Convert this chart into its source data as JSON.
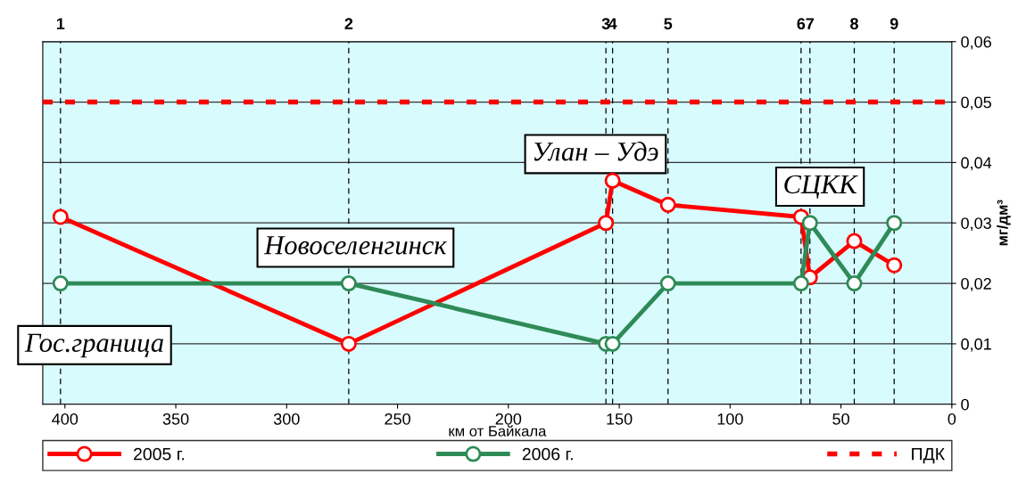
{
  "chart_data": {
    "type": "line",
    "xlabel": "км от Байкала",
    "ylabel": "мг/дм³",
    "x": [
      402,
      272,
      156,
      153,
      128,
      68,
      64,
      44,
      26
    ],
    "series": [
      {
        "name": "2005 г.",
        "color": "#ff0000",
        "values": [
          0.031,
          0.01,
          0.03,
          0.037,
          0.033,
          0.031,
          0.021,
          0.027,
          0.023
        ]
      },
      {
        "name": "2006 г.",
        "color": "#2e8b57",
        "values": [
          0.02,
          0.02,
          0.01,
          0.01,
          0.02,
          0.02,
          0.03,
          0.02,
          0.03
        ]
      }
    ],
    "xlim": [
      410,
      0
    ],
    "xticks": [
      400,
      350,
      300,
      250,
      200,
      150,
      100,
      50,
      0
    ],
    "ylim": [
      0,
      0.06
    ],
    "yticks": [
      {
        "value": 0,
        "label": "0"
      },
      {
        "value": 0.01,
        "label": "0,01"
      },
      {
        "value": 0.02,
        "label": "0,02"
      },
      {
        "value": 0.03,
        "label": "0,03"
      },
      {
        "value": 0.04,
        "label": "0,04"
      },
      {
        "value": 0.05,
        "label": "0,05"
      },
      {
        "value": 0.06,
        "label": "0,06"
      }
    ],
    "ref_lines": [
      {
        "axis": "y",
        "value": 0.05,
        "label": "ПДК",
        "color": "#ff0000",
        "line_style": "dashed"
      },
      {
        "axis": "x",
        "value": 402,
        "color": "#000000",
        "line_style": "dashed"
      },
      {
        "axis": "x",
        "value": 272,
        "color": "#000000",
        "line_style": "dashed"
      },
      {
        "axis": "x",
        "value": 156,
        "color": "#000000",
        "line_style": "dashed"
      },
      {
        "axis": "x",
        "value": 153,
        "color": "#000000",
        "line_style": "dashed"
      },
      {
        "axis": "x",
        "value": 128,
        "color": "#000000",
        "line_style": "dashed"
      },
      {
        "axis": "x",
        "value": 68,
        "color": "#000000",
        "line_style": "dashed"
      },
      {
        "axis": "x",
        "value": 64,
        "color": "#000000",
        "line_style": "dashed"
      },
      {
        "axis": "x",
        "value": 44,
        "color": "#000000",
        "line_style": "dashed"
      },
      {
        "axis": "x",
        "value": 26,
        "color": "#000000",
        "line_style": "dashed"
      }
    ],
    "annotations": [
      "Гос.граница",
      "Новоселенгинск",
      "Улан – Удэ",
      "СЦКК",
      "1",
      "2",
      "3",
      "4",
      "5",
      "6",
      "7",
      "8",
      "9"
    ],
    "grid": "y",
    "legend": "bottom",
    "marker": "circle",
    "line_style": "solid"
  }
}
